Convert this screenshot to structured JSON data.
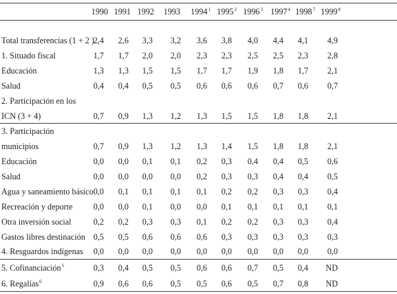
{
  "years": [
    {
      "y": "1990",
      "note": ""
    },
    {
      "y": "1991",
      "note": ""
    },
    {
      "y": "1992",
      "note": ""
    },
    {
      "y": "1993",
      "note": ""
    },
    {
      "y": "1994",
      "note": "1"
    },
    {
      "y": "1995",
      "note": "2"
    },
    {
      "y": "1996",
      "note": "3"
    },
    {
      "y": "1997",
      "note": "4"
    },
    {
      "y": "1998",
      "note": "7"
    },
    {
      "y": "1999",
      "note": "8"
    }
  ],
  "rows": [
    {
      "label": "Total transferencias (1 + 2 )",
      "note": "",
      "values": [
        "2,4",
        "2,6",
        "3,3",
        "3,2",
        "3,6",
        "3,8",
        "4,0",
        "4,4",
        "4,1",
        "4,9"
      ]
    },
    {
      "label": "1. Situado fiscal",
      "note": "",
      "values": [
        "1,7",
        "1,7",
        "2,0",
        "2,0",
        "2,3",
        "2,3",
        "2,5",
        "2,5",
        "2,3",
        "2,8"
      ]
    },
    {
      "label": "Educación",
      "note": "",
      "values": [
        "1,3",
        "1,3",
        "1,5",
        "1,5",
        "1,7",
        "1,7",
        "1,9",
        "1,8",
        "1,7",
        "2,1"
      ]
    },
    {
      "label": "Salud",
      "note": "",
      "values": [
        "0,4",
        "0,4",
        "0,5",
        "0,5",
        "0,6",
        "0,6",
        "0,6",
        "0,7",
        "0,6",
        "0,7"
      ]
    },
    {
      "label": "2. Participación en los",
      "note": "",
      "values": []
    },
    {
      "label": "ICN (3 + 4)",
      "note": "",
      "values": [
        "0,7",
        "0,9",
        "1,3",
        "1,2",
        "1,3",
        "1,5",
        "1,5",
        "1,8",
        "1,8",
        "2,1"
      ]
    },
    {
      "label": "3. Participación",
      "note": "",
      "values": []
    },
    {
      "label": "municipios",
      "note": "",
      "values": [
        "0,7",
        "0,9",
        "1,3",
        "1,2",
        "1,3",
        "1,4",
        "1,5",
        "1,8",
        "1,8",
        "2,1"
      ]
    },
    {
      "label": "Educación",
      "note": "",
      "values": [
        "0,0",
        "0,0",
        "0,1",
        "0,1",
        "0,2",
        "0,3",
        "0,4",
        "0,4",
        "0,5",
        "0,6"
      ]
    },
    {
      "label": "Salud",
      "note": "",
      "values": [
        "0,0",
        "0,0",
        "0,0",
        "0,0",
        "0,2",
        "0,3",
        "0,3",
        "0,4",
        "0,4",
        "0,5"
      ]
    },
    {
      "label": "Agua y saneamiento básico",
      "note": "",
      "values": [
        "0,0",
        "0,1",
        "0,1",
        "0,1",
        "0,1",
        "0,2",
        "0,2",
        "0,3",
        "0,3",
        "0,4"
      ]
    },
    {
      "label": "Recreación y deporte",
      "note": "",
      "values": [
        "0,0",
        "0,0",
        "0,1",
        "0,0",
        "0,0",
        "0,1",
        "0,1",
        "0,1",
        "0,1",
        "0,1"
      ]
    },
    {
      "label": "Otra inversión social",
      "note": "",
      "values": [
        "0,2",
        "0,2",
        "0,3",
        "0,3",
        "0,1",
        "0,2",
        "0,2",
        "0,3",
        "0,3",
        "0,4"
      ]
    },
    {
      "label": "Gastos libres destinación",
      "note": "",
      "values": [
        "0,5",
        "0,5",
        "0,6",
        "0,6",
        "0,6",
        "0,3",
        "0,3",
        "0,3",
        "0,3",
        "0,3"
      ]
    },
    {
      "label": "4. Resguardos indígenas",
      "note": "",
      "values": [
        "0,0",
        "0,0",
        "0,0",
        "0,0",
        "0,0",
        "0,0",
        "0,0",
        "0,0",
        "0,0",
        "0,0"
      ]
    },
    {
      "label": "5. Cofinanciación",
      "note": "5",
      "values": [
        "0,3",
        "0,4",
        "0,5",
        "0,5",
        "0,6",
        "0,6",
        "0,7",
        "0,5",
        "0,4",
        "ND"
      ]
    },
    {
      "label": "6. Regalías",
      "note": "6",
      "values": [
        "0,9",
        "0,6",
        "0,6",
        "0,5",
        "0,5",
        "0,6",
        "0,5",
        "0,7",
        "0,8",
        "ND"
      ]
    }
  ]
}
